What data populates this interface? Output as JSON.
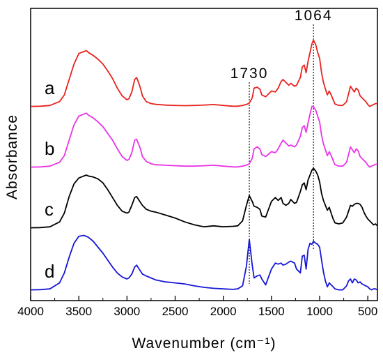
{
  "chart_data": {
    "type": "line",
    "xlabel": "Wavenumber (cm⁻¹)",
    "ylabel": "Absorbance",
    "xlim": [
      4000,
      400
    ],
    "x_reversed": true,
    "x_ticks": [
      4000,
      3500,
      3000,
      2500,
      2000,
      1500,
      1000,
      500
    ],
    "y_ticks_shown": false,
    "grid": false,
    "legend": "none",
    "annotations": [
      {
        "text": "1730",
        "x": 1730,
        "guide": "dotted-vertical"
      },
      {
        "text": "1064",
        "x": 1064,
        "guide": "dotted-vertical"
      }
    ],
    "series": [
      {
        "label": "a",
        "color": "#e8231e",
        "x": [
          4000,
          3900,
          3800,
          3700,
          3650,
          3600,
          3550,
          3500,
          3450,
          3420,
          3400,
          3350,
          3300,
          3250,
          3200,
          3150,
          3100,
          3050,
          3000,
          2980,
          2950,
          2920,
          2900,
          2880,
          2860,
          2840,
          2800,
          2750,
          2700,
          2600,
          2500,
          2400,
          2300,
          2200,
          2100,
          2000,
          1900,
          1850,
          1800,
          1750,
          1730,
          1700,
          1680,
          1650,
          1620,
          1600,
          1560,
          1500,
          1460,
          1430,
          1400,
          1380,
          1350,
          1320,
          1300,
          1260,
          1240,
          1200,
          1180,
          1160,
          1140,
          1120,
          1100,
          1080,
          1064,
          1040,
          1020,
          1000,
          980,
          960,
          940,
          920,
          900,
          880,
          860,
          840,
          800,
          760,
          720,
          700,
          680,
          660,
          640,
          620,
          600,
          580,
          560,
          540,
          520,
          500,
          480,
          460,
          440,
          420,
          400
        ],
        "y": [
          0.01,
          0.012,
          0.02,
          0.06,
          0.13,
          0.29,
          0.45,
          0.56,
          0.58,
          0.59,
          0.57,
          0.54,
          0.5,
          0.45,
          0.38,
          0.3,
          0.2,
          0.12,
          0.08,
          0.09,
          0.16,
          0.29,
          0.31,
          0.26,
          0.2,
          0.12,
          0.06,
          0.04,
          0.032,
          0.024,
          0.02,
          0.018,
          0.02,
          0.025,
          0.03,
          0.02,
          0.012,
          0.012,
          0.02,
          0.035,
          0.045,
          0.1,
          0.2,
          0.21,
          0.19,
          0.13,
          0.11,
          0.17,
          0.16,
          0.2,
          0.27,
          0.29,
          0.26,
          0.23,
          0.25,
          0.22,
          0.23,
          0.31,
          0.42,
          0.44,
          0.36,
          0.48,
          0.57,
          0.66,
          0.7,
          0.65,
          0.57,
          0.51,
          0.36,
          0.26,
          0.19,
          0.13,
          0.17,
          0.13,
          0.08,
          0.035,
          0.02,
          0.02,
          0.06,
          0.14,
          0.22,
          0.19,
          0.16,
          0.2,
          0.18,
          0.12,
          0.1,
          0.08,
          0.06,
          0.03,
          0.01,
          0.02,
          0.03,
          0.04,
          0.04
        ]
      },
      {
        "label": "b",
        "color": "#e934e6",
        "x": [
          4000,
          3900,
          3800,
          3700,
          3650,
          3600,
          3550,
          3500,
          3450,
          3420,
          3400,
          3350,
          3300,
          3250,
          3200,
          3150,
          3100,
          3050,
          3000,
          2980,
          2950,
          2920,
          2900,
          2880,
          2860,
          2840,
          2800,
          2750,
          2700,
          2600,
          2500,
          2400,
          2300,
          2200,
          2100,
          2000,
          1900,
          1850,
          1800,
          1750,
          1730,
          1700,
          1680,
          1650,
          1620,
          1600,
          1560,
          1500,
          1460,
          1430,
          1400,
          1380,
          1350,
          1320,
          1300,
          1260,
          1240,
          1200,
          1180,
          1160,
          1140,
          1120,
          1100,
          1080,
          1064,
          1040,
          1020,
          1000,
          980,
          960,
          940,
          920,
          900,
          880,
          860,
          840,
          800,
          760,
          720,
          700,
          680,
          660,
          640,
          620,
          600,
          580,
          560,
          540,
          520,
          500,
          480,
          460,
          440,
          420,
          400
        ],
        "y": [
          0.01,
          0.012,
          0.02,
          0.06,
          0.13,
          0.29,
          0.45,
          0.54,
          0.56,
          0.57,
          0.55,
          0.52,
          0.48,
          0.43,
          0.36,
          0.29,
          0.2,
          0.12,
          0.08,
          0.09,
          0.16,
          0.29,
          0.3,
          0.25,
          0.2,
          0.12,
          0.07,
          0.045,
          0.035,
          0.03,
          0.025,
          0.02,
          0.02,
          0.025,
          0.03,
          0.02,
          0.012,
          0.012,
          0.02,
          0.035,
          0.045,
          0.1,
          0.2,
          0.22,
          0.2,
          0.14,
          0.12,
          0.17,
          0.16,
          0.2,
          0.26,
          0.29,
          0.26,
          0.23,
          0.24,
          0.22,
          0.24,
          0.33,
          0.42,
          0.44,
          0.37,
          0.47,
          0.56,
          0.64,
          0.64,
          0.6,
          0.54,
          0.48,
          0.34,
          0.25,
          0.19,
          0.13,
          0.17,
          0.13,
          0.08,
          0.035,
          0.02,
          0.02,
          0.06,
          0.14,
          0.22,
          0.19,
          0.16,
          0.2,
          0.18,
          0.12,
          0.1,
          0.08,
          0.06,
          0.03,
          0.01,
          0.02,
          0.03,
          0.04,
          0.04
        ]
      },
      {
        "label": "c",
        "color": "#000000",
        "x": [
          4000,
          3900,
          3800,
          3700,
          3650,
          3600,
          3550,
          3500,
          3450,
          3420,
          3400,
          3350,
          3300,
          3250,
          3200,
          3150,
          3100,
          3050,
          3000,
          2980,
          2950,
          2920,
          2900,
          2880,
          2860,
          2840,
          2800,
          2750,
          2700,
          2600,
          2500,
          2400,
          2300,
          2200,
          2100,
          2000,
          1900,
          1850,
          1800,
          1760,
          1730,
          1700,
          1680,
          1650,
          1620,
          1600,
          1560,
          1500,
          1460,
          1430,
          1400,
          1380,
          1350,
          1320,
          1300,
          1260,
          1240,
          1200,
          1180,
          1160,
          1140,
          1120,
          1100,
          1080,
          1064,
          1040,
          1020,
          1000,
          980,
          960,
          940,
          920,
          900,
          880,
          860,
          840,
          800,
          760,
          720,
          700,
          680,
          660,
          640,
          620,
          600,
          580,
          560,
          540,
          520,
          500,
          480,
          460,
          440,
          420,
          400
        ],
        "y": [
          0.01,
          0.012,
          0.02,
          0.07,
          0.16,
          0.33,
          0.46,
          0.52,
          0.54,
          0.55,
          0.54,
          0.53,
          0.51,
          0.47,
          0.4,
          0.32,
          0.24,
          0.18,
          0.16,
          0.17,
          0.24,
          0.32,
          0.33,
          0.3,
          0.27,
          0.24,
          0.2,
          0.18,
          0.17,
          0.14,
          0.11,
          0.07,
          0.04,
          0.02,
          0.03,
          0.02,
          0.025,
          0.03,
          0.08,
          0.24,
          0.34,
          0.28,
          0.23,
          0.22,
          0.2,
          0.13,
          0.12,
          0.28,
          0.32,
          0.29,
          0.32,
          0.26,
          0.24,
          0.26,
          0.3,
          0.26,
          0.27,
          0.38,
          0.45,
          0.47,
          0.4,
          0.5,
          0.55,
          0.6,
          0.62,
          0.59,
          0.55,
          0.48,
          0.36,
          0.29,
          0.24,
          0.19,
          0.22,
          0.16,
          0.1,
          0.06,
          0.05,
          0.06,
          0.12,
          0.18,
          0.24,
          0.23,
          0.25,
          0.26,
          0.26,
          0.25,
          0.22,
          0.17,
          0.13,
          0.1,
          0.08,
          0.06,
          0.04,
          0.05,
          0.03
        ]
      },
      {
        "label": "d",
        "color": "#1716d6",
        "x": [
          4000,
          3900,
          3800,
          3700,
          3650,
          3600,
          3550,
          3500,
          3450,
          3420,
          3400,
          3350,
          3300,
          3250,
          3200,
          3150,
          3100,
          3050,
          3000,
          2980,
          2950,
          2920,
          2900,
          2880,
          2860,
          2840,
          2800,
          2750,
          2700,
          2600,
          2500,
          2400,
          2300,
          2200,
          2100,
          2000,
          1900,
          1850,
          1800,
          1760,
          1730,
          1700,
          1680,
          1650,
          1620,
          1600,
          1560,
          1500,
          1460,
          1430,
          1400,
          1380,
          1350,
          1320,
          1300,
          1260,
          1240,
          1200,
          1180,
          1160,
          1140,
          1120,
          1100,
          1080,
          1064,
          1040,
          1020,
          1000,
          980,
          960,
          940,
          920,
          900,
          880,
          860,
          840,
          800,
          760,
          720,
          700,
          680,
          660,
          640,
          620,
          600,
          580,
          560,
          540,
          520,
          500,
          480,
          460,
          440,
          420,
          400
        ],
        "y": [
          0.01,
          0.012,
          0.02,
          0.08,
          0.18,
          0.34,
          0.48,
          0.55,
          0.56,
          0.55,
          0.54,
          0.5,
          0.44,
          0.38,
          0.31,
          0.24,
          0.18,
          0.14,
          0.12,
          0.13,
          0.17,
          0.24,
          0.26,
          0.23,
          0.2,
          0.17,
          0.15,
          0.13,
          0.11,
          0.09,
          0.08,
          0.07,
          0.05,
          0.035,
          0.025,
          0.02,
          0.015,
          0.02,
          0.05,
          0.25,
          0.52,
          0.26,
          0.13,
          0.15,
          0.16,
          0.12,
          0.06,
          0.22,
          0.28,
          0.27,
          0.28,
          0.26,
          0.27,
          0.29,
          0.3,
          0.28,
          0.22,
          0.18,
          0.35,
          0.36,
          0.22,
          0.42,
          0.48,
          0.47,
          0.5,
          0.48,
          0.47,
          0.44,
          0.31,
          0.19,
          0.1,
          0.04,
          0.08,
          0.06,
          0.04,
          0.02,
          0.01,
          0.01,
          0.05,
          0.1,
          0.12,
          0.08,
          0.12,
          0.11,
          0.08,
          0.09,
          0.07,
          0.06,
          0.05,
          0.04,
          0.02,
          0.01,
          0.02,
          0.02,
          0.01
        ]
      }
    ]
  }
}
